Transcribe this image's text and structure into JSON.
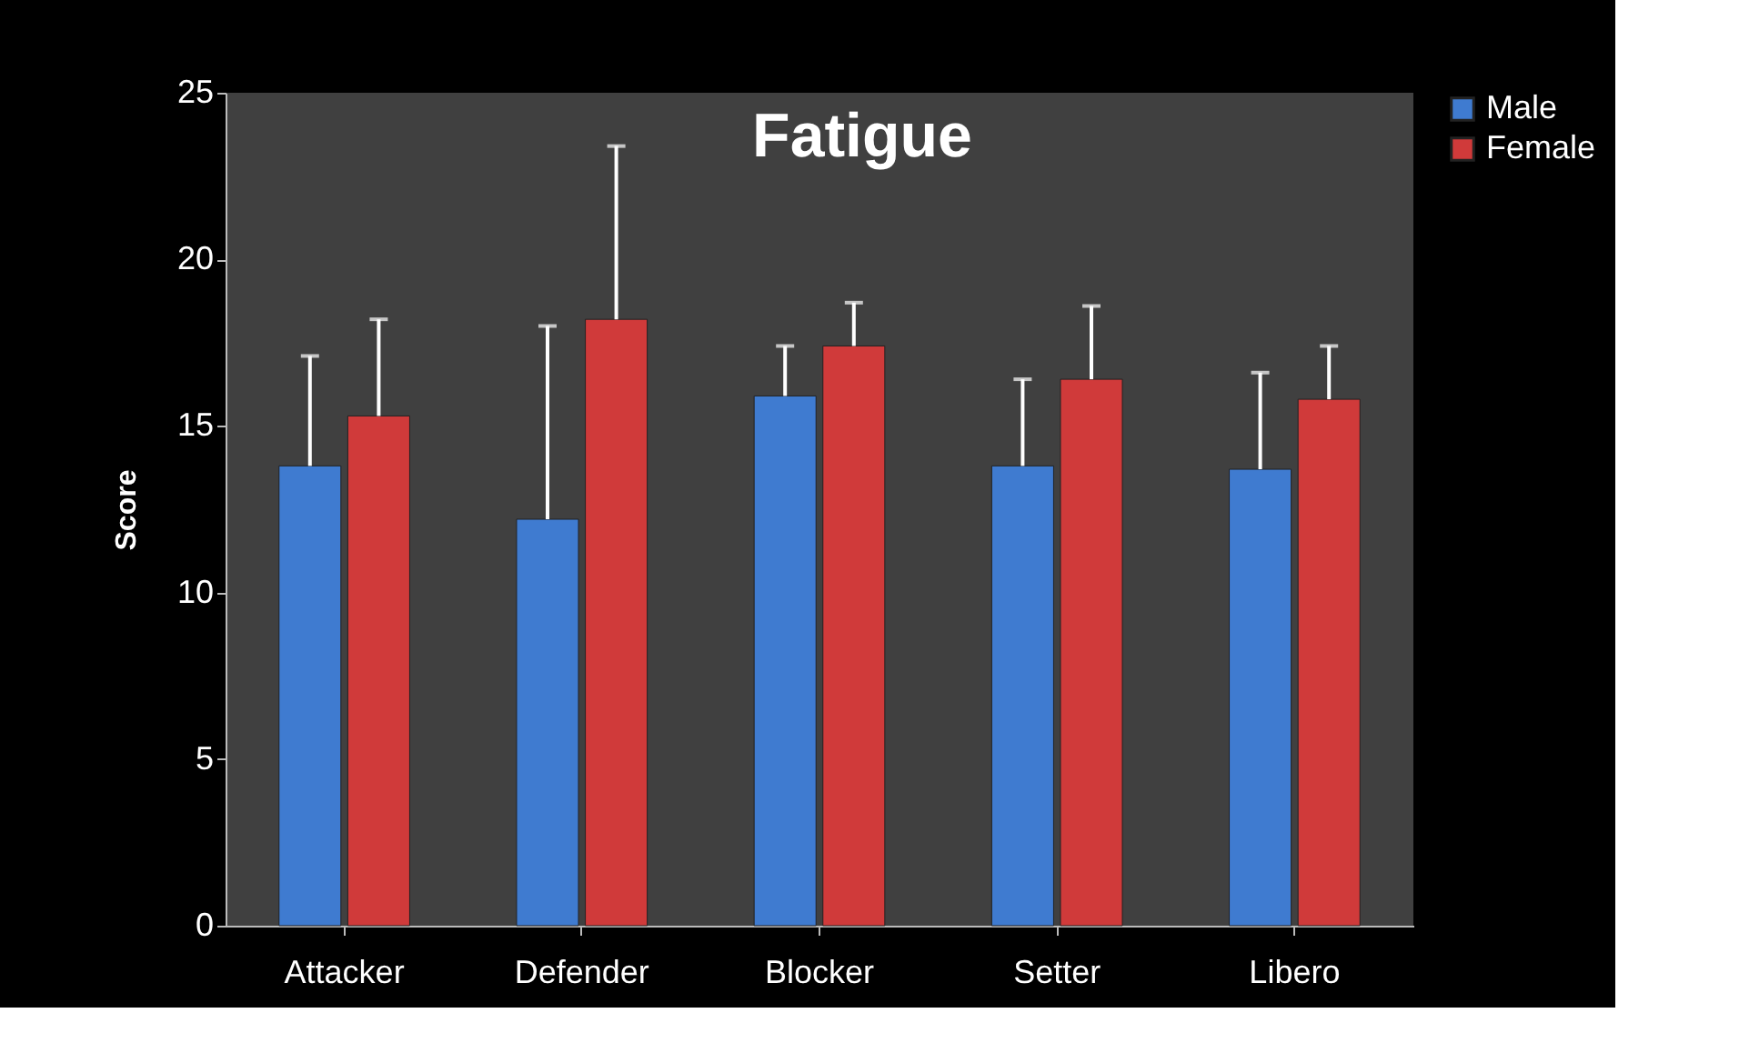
{
  "chart_data": {
    "type": "bar",
    "title": "Fatigue",
    "ylabel": "Score",
    "categories": [
      "Attacker",
      "Defender",
      "Blocker",
      "Setter",
      "Libero"
    ],
    "series": [
      {
        "name": "Male",
        "color": "#3f7bd0",
        "values": [
          13.8,
          12.2,
          15.9,
          13.8,
          13.7
        ],
        "errors": [
          [
            13.8,
            17.1
          ],
          [
            12.2,
            18.0
          ],
          [
            15.9,
            17.4
          ],
          [
            13.8,
            16.4
          ],
          [
            13.7,
            16.6
          ]
        ]
      },
      {
        "name": "Female",
        "color": "#d03a3a",
        "values": [
          15.3,
          18.2,
          17.4,
          16.4,
          15.8
        ],
        "errors": [
          [
            15.3,
            18.2
          ],
          [
            18.2,
            23.4
          ],
          [
            17.4,
            18.7
          ],
          [
            16.4,
            18.6
          ],
          [
            15.8,
            17.4
          ]
        ]
      }
    ],
    "ylim": [
      0,
      25
    ],
    "yticks": [
      0,
      5,
      10,
      15,
      20,
      25
    ],
    "grid": false,
    "legend": "right"
  }
}
